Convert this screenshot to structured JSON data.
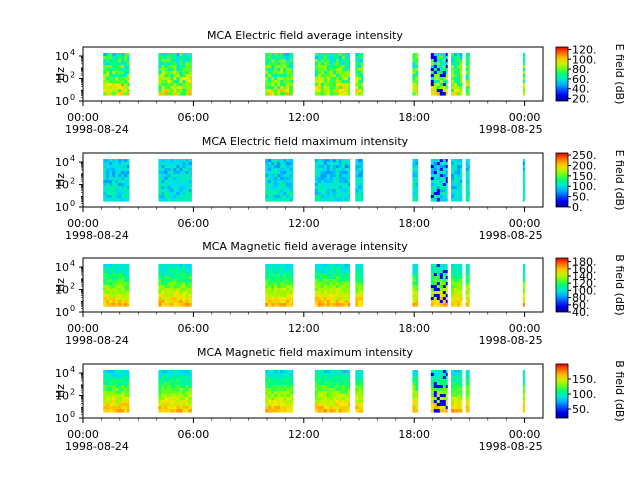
{
  "chart_data": [
    {
      "type": "heatmap",
      "title": "MCA  Electric field average intensity",
      "ylabel": "Hz",
      "colorbar_label": "E field (dB)",
      "colorbar_range": [
        15,
        125
      ],
      "colorbar_ticks": [
        "20.",
        "40.",
        "60.",
        "80.",
        "100.",
        "120."
      ],
      "y_scale": "log",
      "y_ticks": [
        {
          "base": "10",
          "exp": "0"
        },
        {
          "base": "10",
          "exp": "2"
        },
        {
          "base": "10",
          "exp": "4"
        }
      ],
      "x_ticks": [
        "00:00",
        "06:00",
        "12:00",
        "18:00",
        "00:00"
      ],
      "x_date_labels": [
        "1998-08-24",
        "1998-08-25"
      ],
      "data_intervals_hours": [
        [
          1.1,
          2.5
        ],
        [
          4.1,
          5.9
        ],
        [
          9.9,
          11.4
        ],
        [
          12.6,
          14.5
        ],
        [
          14.8,
          15.2
        ],
        [
          17.9,
          18.2
        ],
        [
          18.9,
          19.8
        ],
        [
          20.0,
          20.6
        ],
        [
          20.8,
          21.0
        ],
        [
          23.9,
          24.0
        ]
      ],
      "character": "mid"
    },
    {
      "type": "heatmap",
      "title": "MCA  Electric field maximum intensity",
      "ylabel": "Hz",
      "colorbar_label": "E field (dB)",
      "colorbar_range": [
        0,
        260
      ],
      "colorbar_ticks": [
        "0.",
        "50.",
        "100.",
        "150.",
        "200.",
        "250."
      ],
      "y_scale": "log",
      "y_ticks": [
        {
          "base": "10",
          "exp": "0"
        },
        {
          "base": "10",
          "exp": "2"
        },
        {
          "base": "10",
          "exp": "4"
        }
      ],
      "x_ticks": [
        "00:00",
        "06:00",
        "12:00",
        "18:00",
        "00:00"
      ],
      "x_date_labels": [
        "1998-08-24",
        "1998-08-25"
      ],
      "data_intervals_hours": [
        [
          1.1,
          2.5
        ],
        [
          4.1,
          5.9
        ],
        [
          9.9,
          11.4
        ],
        [
          12.6,
          14.5
        ],
        [
          14.8,
          15.2
        ],
        [
          17.9,
          18.2
        ],
        [
          18.9,
          19.8
        ],
        [
          20.0,
          20.6
        ],
        [
          20.8,
          21.0
        ],
        [
          23.9,
          24.0
        ]
      ],
      "character": "low"
    },
    {
      "type": "heatmap",
      "title": "MCA  Magnetic field average intensity",
      "ylabel": "Hz",
      "colorbar_label": "B field (dB)",
      "colorbar_range": [
        40,
        190
      ],
      "colorbar_ticks": [
        "40.",
        "60.",
        "80.",
        "100.",
        "120.",
        "140.",
        "160.",
        "180."
      ],
      "y_scale": "log",
      "y_ticks": [
        {
          "base": "10",
          "exp": "0"
        },
        {
          "base": "10",
          "exp": "2"
        },
        {
          "base": "10",
          "exp": "4"
        }
      ],
      "x_ticks": [
        "00:00",
        "06:00",
        "12:00",
        "18:00",
        "00:00"
      ],
      "x_date_labels": [
        "1998-08-24",
        "1998-08-25"
      ],
      "data_intervals_hours": [
        [
          1.1,
          2.5
        ],
        [
          4.1,
          5.9
        ],
        [
          9.9,
          11.4
        ],
        [
          12.6,
          14.5
        ],
        [
          14.8,
          15.2
        ],
        [
          17.9,
          18.2
        ],
        [
          18.9,
          19.8
        ],
        [
          20.0,
          20.6
        ],
        [
          20.8,
          21.0
        ],
        [
          23.9,
          24.0
        ]
      ],
      "character": "gradient"
    },
    {
      "type": "heatmap",
      "title": "MCA  Magnetic field maximum intensity",
      "ylabel": "Hz",
      "colorbar_label": "B field (dB)",
      "colorbar_range": [
        20,
        200
      ],
      "colorbar_ticks": [
        "50.",
        "100.",
        "150."
      ],
      "y_scale": "log",
      "y_ticks": [
        {
          "base": "10",
          "exp": "0"
        },
        {
          "base": "10",
          "exp": "2"
        },
        {
          "base": "10",
          "exp": "4"
        }
      ],
      "x_ticks": [
        "00:00",
        "06:00",
        "12:00",
        "18:00",
        "00:00"
      ],
      "x_date_labels": [
        "1998-08-24",
        "1998-08-25"
      ],
      "data_intervals_hours": [
        [
          1.1,
          2.5
        ],
        [
          4.1,
          5.9
        ],
        [
          9.9,
          11.4
        ],
        [
          12.6,
          14.5
        ],
        [
          14.8,
          15.2
        ],
        [
          17.9,
          18.2
        ],
        [
          18.9,
          19.8
        ],
        [
          20.0,
          20.6
        ],
        [
          20.8,
          21.0
        ],
        [
          23.9,
          24.0
        ]
      ],
      "character": "gradient"
    }
  ]
}
